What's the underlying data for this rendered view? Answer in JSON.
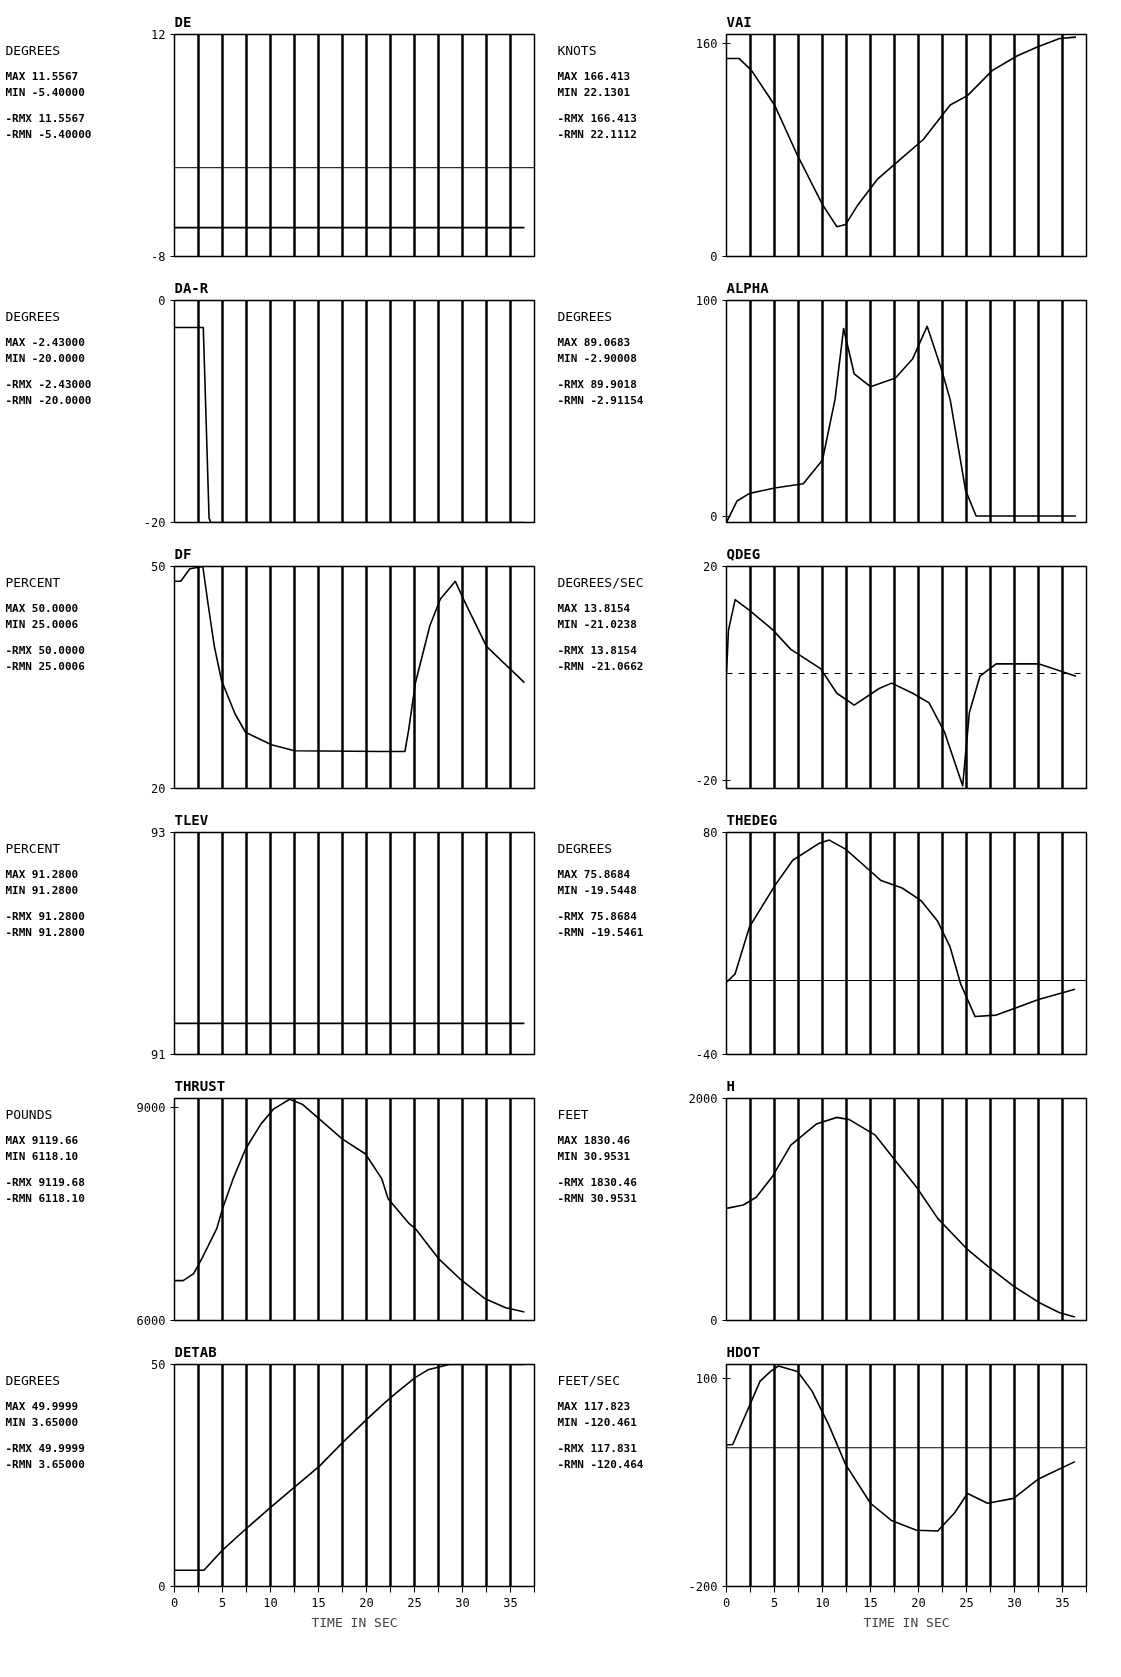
{
  "chart_data": [
    {
      "type": "line",
      "title": "DE",
      "ylabel": "DEGREES",
      "annotations": [
        "MAX  11.5567",
        "MIN  -5.40000",
        "-RMX 11.5567",
        "-RMN -5.40000"
      ],
      "color": "#000000",
      "xlim": [
        0,
        37.5
      ],
      "xticks": [
        0,
        {
          "value": 2.5,
          "label": null
        },
        5,
        {
          "value": 7.5,
          "label": null
        },
        10,
        {
          "value": 12.5,
          "label": null
        },
        15,
        {
          "value": 17.5,
          "label": null
        },
        20,
        {
          "value": 22.5,
          "label": null
        },
        25,
        {
          "value": 27.5,
          "label": null
        },
        30,
        {
          "value": 32.5,
          "label": null
        },
        35,
        {
          "value": 37.5,
          "label": null
        }
      ],
      "ylim": [
        -8,
        12
      ],
      "yticks": [
        -8,
        12
      ],
      "grid": "x",
      "tick_labels": "y",
      "ref_lines": [
        {
          "axis": "y",
          "value": 0
        }
      ],
      "x": [
        0,
        36.45
      ],
      "values": [
        -5.4,
        -5.4
      ]
    },
    {
      "type": "line",
      "title": "DA-R",
      "ylabel": "DEGREES",
      "annotations": [
        "MAX  -2.43000",
        "MIN  -20.0000",
        "-RMX -2.43000",
        "-RMN -20.0000"
      ],
      "color": "#000000",
      "xlim": [
        0,
        37.5
      ],
      "xticks": [
        0,
        {
          "value": 2.5,
          "label": null
        },
        5,
        {
          "value": 7.5,
          "label": null
        },
        10,
        {
          "value": 12.5,
          "label": null
        },
        15,
        {
          "value": 17.5,
          "label": null
        },
        20,
        {
          "value": 22.5,
          "label": null
        },
        25,
        {
          "value": 27.5,
          "label": null
        },
        30,
        {
          "value": 32.5,
          "label": null
        },
        35,
        {
          "value": 37.5,
          "label": null
        }
      ],
      "ylim": [
        -20,
        0
      ],
      "yticks": [
        -20,
        0
      ],
      "grid": "x",
      "tick_labels": "y",
      "x": [
        0,
        3.0,
        3.6,
        3.8,
        36.45
      ],
      "values": [
        -2.43,
        -2.43,
        -19.6,
        -20,
        -20
      ]
    },
    {
      "type": "line",
      "title": "DF",
      "ylabel": "PERCENT",
      "annotations": [
        "MAX  50.0000",
        "MIN  25.0006",
        "-RMX 50.0000",
        "-RMN 25.0006"
      ],
      "color": "#000000",
      "xlim": [
        0,
        37.5
      ],
      "xticks": [
        0,
        {
          "value": 2.5,
          "label": null
        },
        5,
        {
          "value": 7.5,
          "label": null
        },
        10,
        {
          "value": 12.5,
          "label": null
        },
        15,
        {
          "value": 17.5,
          "label": null
        },
        20,
        {
          "value": 22.5,
          "label": null
        },
        25,
        {
          "value": 27.5,
          "label": null
        },
        30,
        {
          "value": 32.5,
          "label": null
        },
        35,
        {
          "value": 37.5,
          "label": null
        }
      ],
      "ylim": [
        20,
        50
      ],
      "yticks": [
        20,
        50
      ],
      "grid": "x",
      "tick_labels": "y",
      "x": [
        0,
        0.65,
        1.6,
        2.95,
        3.5,
        4.15,
        4.9,
        6.3,
        7.4,
        10.1,
        12.5,
        21.6,
        24.0,
        24.4,
        25.1,
        26.6,
        27.7,
        29.25,
        30.1,
        32.5,
        36.45
      ],
      "values": [
        48,
        48,
        49.7,
        50,
        44.9,
        39.2,
        34.6,
        30.1,
        27.6,
        25.9,
        25.1,
        25,
        25,
        28,
        34.3,
        42,
        45.6,
        48,
        45.6,
        39.2,
        34.3
      ]
    },
    {
      "type": "line",
      "title": "TLEV",
      "ylabel": "PERCENT",
      "annotations": [
        "MAX  91.2800",
        "MIN  91.2800",
        "-RMX 91.2800",
        "-RMN 91.2800"
      ],
      "color": "#000000",
      "xlim": [
        0,
        37.5
      ],
      "xticks": [
        0,
        {
          "value": 2.5,
          "label": null
        },
        5,
        {
          "value": 7.5,
          "label": null
        },
        10,
        {
          "value": 12.5,
          "label": null
        },
        15,
        {
          "value": 17.5,
          "label": null
        },
        20,
        {
          "value": 22.5,
          "label": null
        },
        25,
        {
          "value": 27.5,
          "label": null
        },
        30,
        {
          "value": 32.5,
          "label": null
        },
        35,
        {
          "value": 37.5,
          "label": null
        }
      ],
      "ylim": [
        91,
        93
      ],
      "yticks": [
        91,
        93
      ],
      "grid": "x",
      "tick_labels": "y",
      "x": [
        0,
        36.45
      ],
      "values": [
        91.28,
        91.28
      ]
    },
    {
      "type": "line",
      "title": "THRUST",
      "ylabel": "POUNDS",
      "annotations": [
        "MAX  9119.66",
        "MIN  6118.10",
        "-RMX 9119.68",
        "-RMN 6118.10"
      ],
      "color": "#000000",
      "xlim": [
        0,
        37.5
      ],
      "xticks": [
        0,
        {
          "value": 2.5,
          "label": null
        },
        5,
        {
          "value": 7.5,
          "label": null
        },
        10,
        {
          "value": 12.5,
          "label": null
        },
        15,
        {
          "value": 17.5,
          "label": null
        },
        20,
        {
          "value": 22.5,
          "label": null
        },
        25,
        {
          "value": 27.5,
          "label": null
        },
        30,
        {
          "value": 32.5,
          "label": null
        },
        35,
        {
          "value": 37.5,
          "label": null
        }
      ],
      "ylim": [
        6000,
        9120
      ],
      "yticks": [
        6000,
        9000
      ],
      "grid": "x",
      "tick_labels": "y",
      "x": [
        0,
        0.9,
        2.0,
        2.85,
        4.4,
        5.0,
        6.1,
        7.4,
        9.0,
        10.3,
        12.0,
        13.3,
        15.1,
        17.5,
        19.9,
        21.6,
        22.25,
        24.45,
        25.1,
        27.5,
        29.7,
        32.3,
        34.5,
        36.45
      ],
      "values": [
        6560,
        6560,
        6660,
        6870,
        7290,
        7570,
        7990,
        8410,
        8760,
        8970,
        9110,
        9040,
        8830,
        8550,
        8340,
        7990,
        7710,
        7360,
        7290,
        6870,
        6590,
        6310,
        6180,
        6120
      ]
    },
    {
      "type": "line",
      "title": "DETAB",
      "ylabel": "DEGREES",
      "xlabel": "TIME IN SEC",
      "annotations": [
        "MAX  49.9999",
        "MIN  3.65000",
        "-RMX 49.9999",
        "-RMN 3.65000"
      ],
      "color": "#000000",
      "xlim": [
        0,
        37.5
      ],
      "xticks": [
        0,
        {
          "value": 2.5,
          "label": null
        },
        5,
        {
          "value": 7.5,
          "label": null
        },
        10,
        {
          "value": 12.5,
          "label": null
        },
        15,
        {
          "value": 17.5,
          "label": null
        },
        20,
        {
          "value": 22.5,
          "label": null
        },
        25,
        {
          "value": 27.5,
          "label": null
        },
        30,
        {
          "value": 32.5,
          "label": null
        },
        35,
        {
          "value": 37.5,
          "label": null
        }
      ],
      "ylim": [
        0,
        50
      ],
      "yticks": [
        0,
        50
      ],
      "grid": "x",
      "x": [
        0,
        3.06,
        5.0,
        7.4,
        9.95,
        12.5,
        15.1,
        17.5,
        20.0,
        21.8,
        23.1,
        25.1,
        26.4,
        28.6,
        36.45
      ],
      "values": [
        3.65,
        3.65,
        8.2,
        12.9,
        17.7,
        22.4,
        27.1,
        32.4,
        37.6,
        41.2,
        43.6,
        47.1,
        48.8,
        50,
        50
      ]
    },
    {
      "type": "line",
      "title": "VAI",
      "ylabel": "KNOTS",
      "annotations": [
        "MAX  166.413",
        "MIN  22.1301",
        "-RMX 166.413",
        "-RMN 22.1112"
      ],
      "color": "#000000",
      "xlim": [
        0,
        37.5
      ],
      "xticks": [
        0,
        {
          "value": 2.5,
          "label": null
        },
        5,
        {
          "value": 7.5,
          "label": null
        },
        10,
        {
          "value": 12.5,
          "label": null
        },
        15,
        {
          "value": 17.5,
          "label": null
        },
        20,
        {
          "value": 22.5,
          "label": null
        },
        25,
        {
          "value": 27.5,
          "label": null
        },
        30,
        {
          "value": 32.5,
          "label": null
        },
        35,
        {
          "value": 37.5,
          "label": null
        }
      ],
      "ylim": [
        0,
        167
      ],
      "yticks": [
        0,
        160
      ],
      "grid": "x",
      "tick_labels": "y",
      "x": [
        0,
        1.3,
        2.6,
        5.0,
        7.4,
        10.0,
        11.5,
        12.4,
        13.7,
        15.7,
        18.1,
        20.5,
        23.3,
        25.1,
        27.7,
        30.3,
        32.5,
        34.7,
        36.4
      ],
      "values": [
        149,
        149,
        140,
        114,
        76,
        39,
        22.4,
        24,
        39,
        58,
        73,
        88,
        114,
        121,
        140,
        151,
        158,
        164,
        165
      ]
    },
    {
      "type": "line",
      "title": "ALPHA",
      "ylabel": "DEGREES",
      "annotations": [
        "MAX  89.0683",
        "MIN  -2.90008",
        "-RMX 89.9018",
        "-RMN -2.91154"
      ],
      "color": "#000000",
      "xlim": [
        0,
        37.5
      ],
      "xticks": [
        0,
        {
          "value": 2.5,
          "label": null
        },
        5,
        {
          "value": 7.5,
          "label": null
        },
        10,
        {
          "value": 12.5,
          "label": null
        },
        15,
        {
          "value": 17.5,
          "label": null
        },
        20,
        {
          "value": 22.5,
          "label": null
        },
        25,
        {
          "value": 27.5,
          "label": null
        },
        30,
        {
          "value": 32.5,
          "label": null
        },
        35,
        {
          "value": 37.5,
          "label": null
        }
      ],
      "ylim": [
        -3,
        100
      ],
      "yticks": [
        0,
        100
      ],
      "grid": "x",
      "tick_labels": "y",
      "x": [
        0,
        1.1,
        2.4,
        5.0,
        8.0,
        10.0,
        11.3,
        12.2,
        13.3,
        15.0,
        17.6,
        19.4,
        20.9,
        22.4,
        23.3,
        24.9,
        26.0,
        30.0,
        36.4
      ],
      "values": [
        -2.9,
        7,
        10.5,
        13,
        15,
        26,
        54,
        87,
        66,
        60,
        64,
        73,
        88,
        68,
        54,
        12,
        0,
        0,
        0
      ]
    },
    {
      "type": "line",
      "title": "QDEG",
      "ylabel": "DEGREES/SEC",
      "annotations": [
        "MAX  13.8154",
        "MIN  -21.0238",
        "-RMX 13.8154",
        "-RMN -21.0662"
      ],
      "color": "#000000",
      "xlim": [
        0,
        37.5
      ],
      "xticks": [
        0,
        {
          "value": 2.5,
          "label": null
        },
        5,
        {
          "value": 7.5,
          "label": null
        },
        10,
        {
          "value": 12.5,
          "label": null
        },
        15,
        {
          "value": 17.5,
          "label": null
        },
        20,
        {
          "value": 22.5,
          "label": null
        },
        25,
        {
          "value": 27.5,
          "label": null
        },
        30,
        {
          "value": 32.5,
          "label": null
        },
        35,
        {
          "value": 37.5,
          "label": null
        }
      ],
      "ylim": [
        -21.5,
        20
      ],
      "yticks": [
        -20,
        20
      ],
      "grid": "x",
      "tick_labels": "y",
      "ref_lines": [
        {
          "axis": "y",
          "value": 0,
          "line_style": "dashed"
        }
      ],
      "x": [
        0,
        0.2,
        0.9,
        2.4,
        4.8,
        6.7,
        9.8,
        11.5,
        13.3,
        15.9,
        17.2,
        19.4,
        21.1,
        22.7,
        24.6,
        25.3,
        26.4,
        28.1,
        32.5,
        36.4
      ],
      "values": [
        0,
        8,
        13.8,
        11.8,
        8.2,
        4.5,
        0.9,
        -3.7,
        -5.9,
        -2.8,
        -1.8,
        -3.7,
        -5.5,
        -10.9,
        -21,
        -7.3,
        -0.5,
        1.8,
        1.8,
        -0.5
      ]
    },
    {
      "type": "line",
      "title": "THEDEG",
      "ylabel": "DEGREES",
      "annotations": [
        "MAX  75.8684",
        "MIN  -19.5448",
        "-RMX 75.8684",
        "-RMN -19.5461"
      ],
      "color": "#000000",
      "xlim": [
        0,
        37.5
      ],
      "xticks": [
        0,
        {
          "value": 2.5,
          "label": null
        },
        5,
        {
          "value": 7.5,
          "label": null
        },
        10,
        {
          "value": 12.5,
          "label": null
        },
        15,
        {
          "value": 17.5,
          "label": null
        },
        20,
        {
          "value": 22.5,
          "label": null
        },
        25,
        {
          "value": 27.5,
          "label": null
        },
        30,
        {
          "value": 32.5,
          "label": null
        },
        35,
        {
          "value": 37.5,
          "label": null
        }
      ],
      "ylim": [
        -40,
        80
      ],
      "yticks": [
        -40,
        80
      ],
      "grid": "x",
      "tick_labels": "y",
      "ref_lines": [
        {
          "axis": "y",
          "value": 0
        }
      ],
      "x": [
        0,
        0.1,
        0.9,
        2.4,
        5.0,
        6.9,
        9.6,
        10.7,
        12.4,
        14.8,
        16.1,
        18.3,
        20.3,
        22.0,
        23.3,
        24.4,
        25.9,
        28.1,
        32.5,
        36.3
      ],
      "values": [
        0,
        -0.5,
        3.6,
        29,
        51,
        65,
        74,
        75.9,
        71,
        60,
        54,
        50,
        43,
        32,
        18,
        -2,
        -19.5,
        -18.7,
        -10.3,
        -4.7
      ]
    },
    {
      "type": "line",
      "title": "H",
      "ylabel": "FEET",
      "annotations": [
        "MAX  1830.46",
        "MIN  30.9531",
        "-RMX 1830.46",
        "-RMN 30.9531"
      ],
      "color": "#000000",
      "xlim": [
        0,
        37.5
      ],
      "xticks": [
        0,
        {
          "value": 2.5,
          "label": null
        },
        5,
        {
          "value": 7.5,
          "label": null
        },
        10,
        {
          "value": 12.5,
          "label": null
        },
        15,
        {
          "value": 17.5,
          "label": null
        },
        20,
        {
          "value": 22.5,
          "label": null
        },
        25,
        {
          "value": 27.5,
          "label": null
        },
        30,
        {
          "value": 32.5,
          "label": null
        },
        35,
        {
          "value": 37.5,
          "label": null
        }
      ],
      "ylim": [
        0,
        2000
      ],
      "yticks": [
        0,
        2000
      ],
      "grid": "x",
      "tick_labels": "y",
      "x": [
        0,
        1.75,
        3.1,
        4.8,
        6.7,
        9.35,
        11.5,
        12.8,
        15.5,
        17.6,
        19.8,
        22.0,
        25.1,
        27.2,
        29.9,
        32.5,
        34.7,
        36.3
      ],
      "values": [
        1010,
        1040,
        1110,
        1300,
        1580,
        1770,
        1830,
        1810,
        1670,
        1440,
        1200,
        920,
        640,
        490,
        310,
        165,
        70,
        31
      ]
    },
    {
      "type": "line",
      "title": "HDOT",
      "ylabel": "FEET/SEC",
      "xlabel": "TIME IN SEC",
      "annotations": [
        "MAX  117.823",
        "MIN  -120.461",
        "-RMX 117.831",
        "-RMN -120.464"
      ],
      "color": "#000000",
      "xlim": [
        0,
        37.5
      ],
      "xticks": [
        0,
        {
          "value": 2.5,
          "label": null
        },
        5,
        {
          "value": 7.5,
          "label": null
        },
        10,
        {
          "value": 12.5,
          "label": null
        },
        15,
        {
          "value": 17.5,
          "label": null
        },
        20,
        {
          "value": 22.5,
          "label": null
        },
        25,
        {
          "value": 27.5,
          "label": null
        },
        30,
        {
          "value": 32.5,
          "label": null
        },
        35,
        {
          "value": 37.5,
          "label": null
        }
      ],
      "ylim": [
        -200,
        120
      ],
      "yticks": [
        -200,
        100
      ],
      "grid": "x",
      "ref_lines": [
        {
          "axis": "y",
          "value": 0
        }
      ],
      "x": [
        0,
        0.65,
        1.75,
        3.5,
        4.6,
        5.4,
        7.4,
        8.9,
        10.65,
        12.4,
        15.0,
        17.2,
        19.8,
        22.0,
        23.75,
        25.1,
        27.2,
        29.9,
        32.5,
        36.3
      ],
      "values": [
        4,
        4.6,
        40,
        96,
        110,
        117.8,
        110,
        82,
        33,
        -24,
        -80,
        -105,
        -119,
        -120,
        -94,
        -66,
        -80,
        -73,
        -45,
        -20
      ]
    }
  ]
}
